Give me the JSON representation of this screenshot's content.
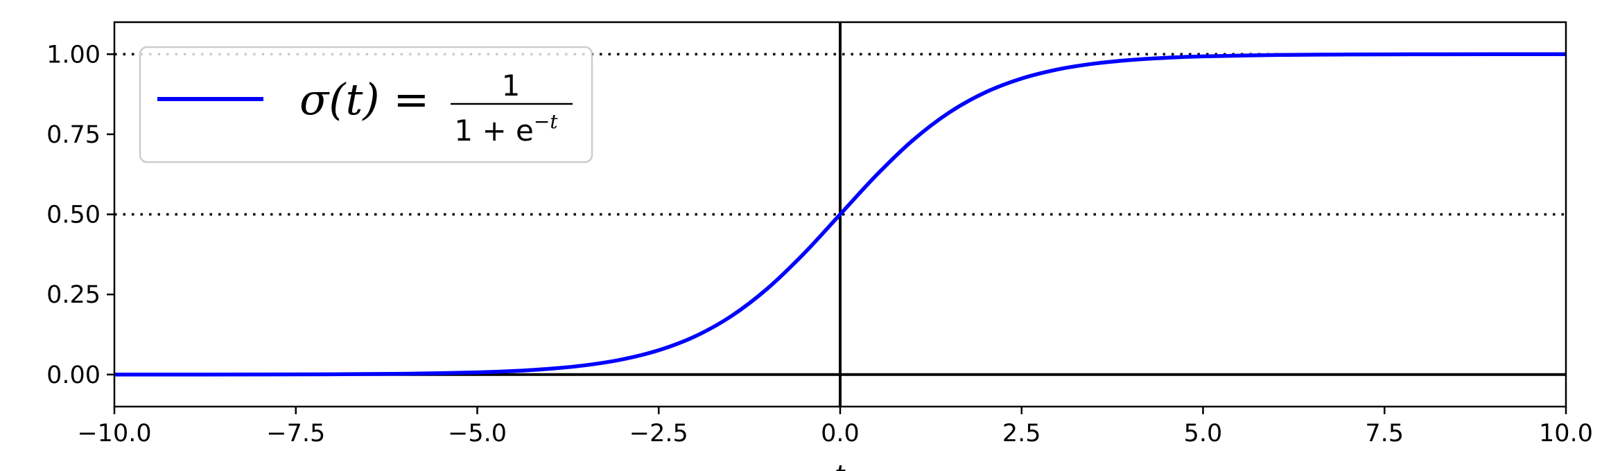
{
  "chart_data": {
    "type": "line",
    "xlabel": "t",
    "ylabel": "",
    "xlim": [
      -10,
      10
    ],
    "ylim": [
      -0.1,
      1.1
    ],
    "x_ticks": [
      -10,
      -7.5,
      -5,
      -2.5,
      0,
      2.5,
      5,
      7.5,
      10
    ],
    "x_tick_labels": [
      "−10.0",
      "−7.5",
      "−5.0",
      "−2.5",
      "0.0",
      "2.5",
      "5.0",
      "7.5",
      "10.0"
    ],
    "y_ticks": [
      0,
      0.25,
      0.5,
      0.75,
      1
    ],
    "y_tick_labels": [
      "0.00",
      "0.25",
      "0.50",
      "0.75",
      "1.00"
    ],
    "grid": false,
    "legend_position": "upper-left",
    "reference_lines": [
      {
        "orientation": "horizontal",
        "value": 0,
        "style": "solid",
        "color": "#000000"
      },
      {
        "orientation": "horizontal",
        "value": 0.5,
        "style": "dotted",
        "color": "#000000"
      },
      {
        "orientation": "horizontal",
        "value": 1,
        "style": "dotted",
        "color": "#000000"
      },
      {
        "orientation": "vertical",
        "value": 0,
        "style": "solid",
        "color": "#000000"
      }
    ],
    "series": [
      {
        "name": "σ(t) = 1 / (1 + e^−t)",
        "legend": {
          "lhs": "σ(t) =",
          "numerator": "1",
          "denominator_base": "1 + e",
          "denominator_exponent": "−t"
        },
        "color": "#0000ff",
        "x": [
          -10,
          -9,
          -8,
          -7,
          -6,
          -5,
          -4.5,
          -4,
          -3.5,
          -3,
          -2.5,
          -2,
          -1.5,
          -1,
          -0.5,
          0,
          0.5,
          1,
          1.5,
          2,
          2.5,
          3,
          3.5,
          4,
          4.5,
          5,
          6,
          7,
          8,
          9,
          10
        ],
        "y": [
          0.0,
          0.0001,
          0.0003,
          0.0009,
          0.0025,
          0.0067,
          0.011,
          0.018,
          0.0293,
          0.0474,
          0.0759,
          0.1192,
          0.1824,
          0.2689,
          0.3775,
          0.5,
          0.6225,
          0.7311,
          0.8176,
          0.8808,
          0.9241,
          0.9526,
          0.9707,
          0.982,
          0.989,
          0.9933,
          0.9975,
          0.9991,
          0.9997,
          0.9999,
          1.0
        ]
      }
    ]
  }
}
